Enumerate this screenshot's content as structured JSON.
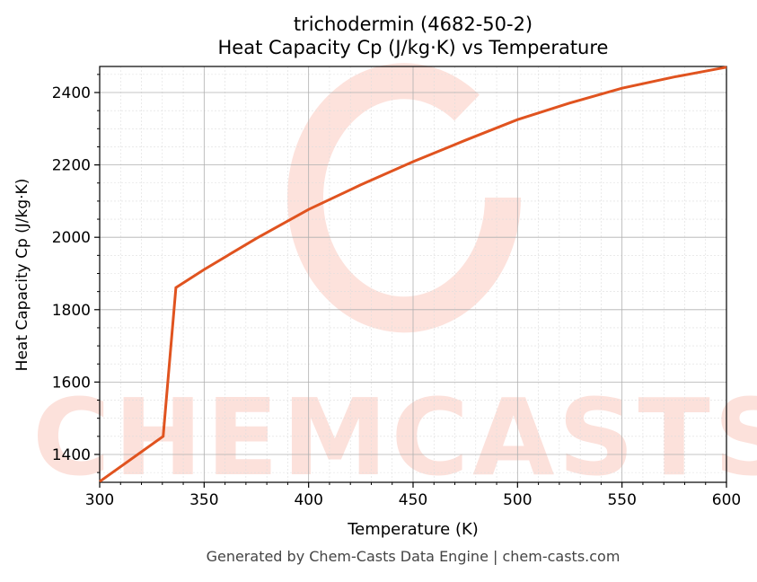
{
  "chart_data": {
    "type": "line",
    "title": "trichodermin (4682-50-2)",
    "subtitle": "Heat Capacity Cp (J/kg·K) vs Temperature",
    "xlabel": "Temperature (K)",
    "ylabel": "Heat Capacity Cp (J/kg·K)",
    "xlim": [
      300,
      600
    ],
    "ylim": [
      1323,
      2472
    ],
    "xticks": [
      300,
      350,
      400,
      450,
      500,
      550,
      600
    ],
    "yticks": [
      1400,
      1600,
      1800,
      2000,
      2200,
      2400
    ],
    "grid": true,
    "series": [
      {
        "color": "#e0531f",
        "x": [
          300,
          330.4,
          336.5,
          350,
          375,
          400,
          425,
          450,
          475,
          500,
          525,
          550,
          575,
          600
        ],
        "y": [
          1325,
          1450,
          1861,
          1911,
          1997,
          2077,
          2145,
          2209,
          2268,
          2325,
          2371,
          2412,
          2443,
          2470
        ]
      }
    ]
  },
  "watermark": "CHEMCASTS",
  "footer": "Generated by Chem-Casts Data Engine | chem-casts.com"
}
